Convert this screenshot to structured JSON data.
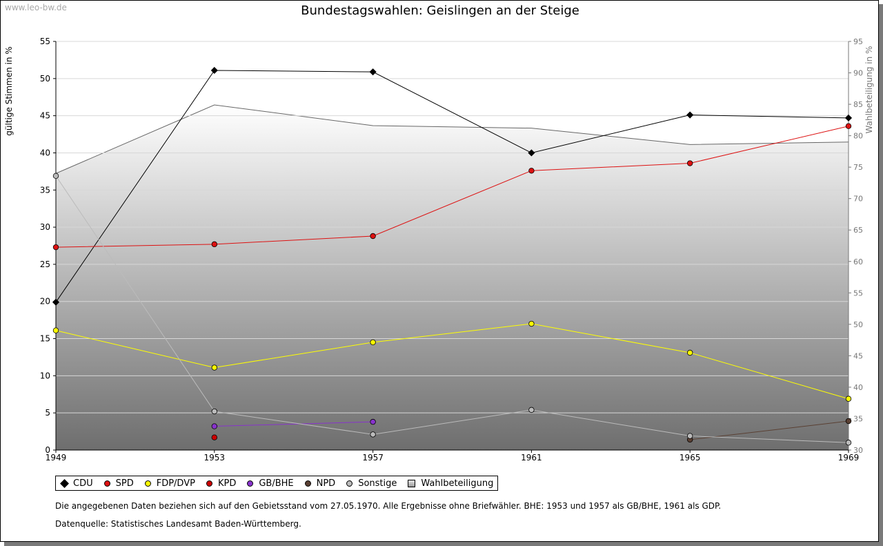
{
  "watermark": "www.leo-bw.de",
  "chart_data": {
    "type": "line",
    "title": "Bundestagswahlen: Geislingen an der Steige",
    "ylabel": "gültige Stimmen in %",
    "y2label": "Wahlbeteiligung in %",
    "x": [
      1949,
      1953,
      1957,
      1961,
      1965,
      1969
    ],
    "ylim": [
      0,
      55
    ],
    "yticks": [
      0,
      5,
      10,
      15,
      20,
      25,
      30,
      35,
      40,
      45,
      50,
      55
    ],
    "y2lim": [
      30,
      95
    ],
    "y2ticks": [
      30,
      35,
      40,
      45,
      50,
      55,
      60,
      65,
      70,
      75,
      80,
      85,
      90,
      95
    ],
    "series": [
      {
        "name": "CDU",
        "color": "#000000",
        "marker": "diamond",
        "values": [
          19.9,
          51.1,
          50.9,
          40.0,
          45.1,
          44.7
        ]
      },
      {
        "name": "SPD",
        "color": "#dd1111",
        "marker": "circle",
        "values": [
          27.3,
          27.7,
          28.8,
          37.6,
          38.6,
          43.6
        ]
      },
      {
        "name": "FDP/DVP",
        "color": "#ffff00",
        "marker": "circle",
        "values": [
          16.1,
          11.1,
          14.5,
          17.0,
          13.1,
          6.9
        ]
      },
      {
        "name": "KPD",
        "color": "#cc0000",
        "marker": "circle",
        "values": [
          null,
          1.7,
          null,
          null,
          null,
          null
        ]
      },
      {
        "name": "GB/BHE",
        "color": "#8833cc",
        "marker": "circle",
        "values": [
          null,
          3.2,
          3.8,
          null,
          null,
          null
        ]
      },
      {
        "name": "NPD",
        "color": "#5a4033",
        "marker": "circle",
        "values": [
          null,
          null,
          null,
          null,
          1.4,
          3.9
        ]
      },
      {
        "name": "Sonstige",
        "color": "#bbbbbb",
        "marker": "circle",
        "values": [
          36.9,
          5.2,
          2.1,
          5.4,
          1.9,
          1.0
        ]
      }
    ],
    "turnout": {
      "name": "Wahlbeteiligung",
      "values": [
        74.0,
        84.9,
        81.6,
        81.2,
        78.6,
        79.0
      ]
    }
  },
  "notes": {
    "line1": "Die angegebenen Daten beziehen sich auf den Gebietsstand vom 27.05.1970. Alle Ergebnisse ohne Briefwähler. BHE: 1953 und 1957 als GB/BHE, 1961 als GDP.",
    "line2": "Datenquelle: Statistisches Landesamt Baden-Württemberg."
  }
}
